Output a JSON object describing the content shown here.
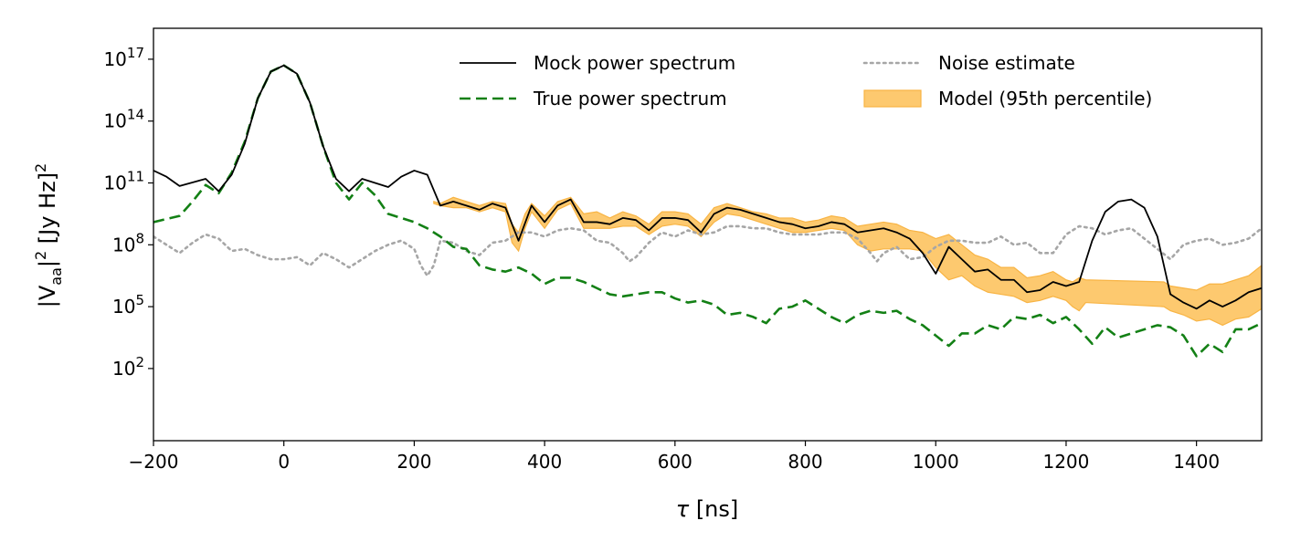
{
  "chart_data": {
    "type": "line",
    "title": "",
    "xlabel": {
      "symbol": "τ",
      "unit": "[ns]"
    },
    "ylabel": {
      "v": "|V",
      "sub": "aa",
      "bracket": "|",
      "sup1": "2",
      "unit": " [Jy Hz]",
      "sup2": "2"
    },
    "xlim": [
      -200,
      1500
    ],
    "ylim_log10": [
      -1.5,
      18.5
    ],
    "yscale": "log",
    "x_ticks": [
      {
        "value": -200,
        "label": "−200"
      },
      {
        "value": 0,
        "label": "0"
      },
      {
        "value": 200,
        "label": "200"
      },
      {
        "value": 400,
        "label": "400"
      },
      {
        "value": 600,
        "label": "600"
      },
      {
        "value": 800,
        "label": "800"
      },
      {
        "value": 1000,
        "label": "1000"
      },
      {
        "value": 1200,
        "label": "1200"
      },
      {
        "value": 1400,
        "label": "1400"
      }
    ],
    "y_ticks": [
      {
        "exp": 17,
        "base": "10",
        "sup": "17"
      },
      {
        "exp": 14,
        "base": "10",
        "sup": "14"
      },
      {
        "exp": 11,
        "base": "10",
        "sup": "11"
      },
      {
        "exp": 8,
        "base": "10",
        "sup": "8"
      },
      {
        "exp": 5,
        "base": "10",
        "sup": "5"
      },
      {
        "exp": 2,
        "base": "10",
        "sup": "2"
      }
    ],
    "legend_position": "top-right",
    "legend": [
      {
        "key": "mock",
        "label": "Mock power spectrum",
        "style": "line-solid"
      },
      {
        "key": "noise",
        "label": "Noise estimate",
        "style": "line-dotted"
      },
      {
        "key": "true",
        "label": "True power spectrum",
        "style": "line-dashed"
      },
      {
        "key": "model",
        "label": "Model (95th percentile)",
        "style": "band"
      }
    ],
    "colors": {
      "mock": "#000000",
      "true": "#138015",
      "noise": "#a6a6a6",
      "model_fill": "#fdc96f",
      "model_edge": "#f8b444"
    },
    "series": [
      {
        "name": "Mock power spectrum",
        "key": "mock",
        "x": [
          -200,
          -180,
          -160,
          -120,
          -100,
          -80,
          -60,
          -40,
          -20,
          0,
          20,
          40,
          60,
          80,
          100,
          120,
          140,
          160,
          180,
          200,
          220,
          240,
          260,
          280,
          300,
          320,
          340,
          360,
          380,
          400,
          420,
          440,
          460,
          480,
          500,
          520,
          540,
          560,
          580,
          600,
          620,
          640,
          660,
          680,
          700,
          720,
          740,
          760,
          780,
          800,
          820,
          840,
          860,
          880,
          900,
          920,
          940,
          960,
          980,
          1000,
          1020,
          1040,
          1060,
          1080,
          1100,
          1120,
          1140,
          1160,
          1180,
          1200,
          1220,
          1240,
          1260,
          1280,
          1300,
          1320,
          1340,
          1360,
          1380,
          1400,
          1420,
          1440,
          1460,
          1480,
          1500
        ],
        "log10_y": [
          11.6,
          11.3,
          10.85,
          11.2,
          10.6,
          11.4,
          12.9,
          15.1,
          16.4,
          16.7,
          16.3,
          14.9,
          12.8,
          11.2,
          10.6,
          11.2,
          11.0,
          10.8,
          11.3,
          11.6,
          11.4,
          9.9,
          10.1,
          9.9,
          9.7,
          10.0,
          9.8,
          8.2,
          9.9,
          9.1,
          9.9,
          10.2,
          9.1,
          9.1,
          9.0,
          9.3,
          9.2,
          8.7,
          9.3,
          9.3,
          9.2,
          8.6,
          9.5,
          9.8,
          9.7,
          9.5,
          9.3,
          9.1,
          9.0,
          8.8,
          8.9,
          9.1,
          9.0,
          8.6,
          8.7,
          8.8,
          8.6,
          8.3,
          7.6,
          6.6,
          7.9,
          7.3,
          6.7,
          6.8,
          6.3,
          6.3,
          5.7,
          5.8,
          6.2,
          6.0,
          6.2,
          8.2,
          9.6,
          10.1,
          10.2,
          9.8,
          8.4,
          5.6,
          5.2,
          4.9,
          5.3,
          5.0,
          5.3,
          5.7,
          5.9
        ],
        "dash": "none"
      },
      {
        "name": "True power spectrum",
        "key": "true",
        "x": [
          -200,
          -160,
          -140,
          -120,
          -100,
          -80,
          -60,
          -40,
          -20,
          0,
          20,
          40,
          60,
          80,
          100,
          120,
          140,
          160,
          180,
          200,
          220,
          240,
          260,
          280,
          300,
          320,
          340,
          360,
          380,
          400,
          420,
          440,
          460,
          480,
          500,
          520,
          540,
          560,
          580,
          600,
          620,
          640,
          660,
          680,
          700,
          720,
          740,
          760,
          780,
          800,
          820,
          840,
          860,
          880,
          900,
          920,
          940,
          960,
          980,
          1000,
          1020,
          1040,
          1060,
          1080,
          1100,
          1120,
          1140,
          1160,
          1180,
          1200,
          1220,
          1240,
          1260,
          1280,
          1300,
          1320,
          1340,
          1360,
          1380,
          1400,
          1420,
          1440,
          1460,
          1480,
          1500
        ],
        "log10_y": [
          9.1,
          9.4,
          10.1,
          10.9,
          10.5,
          11.5,
          13.0,
          15.1,
          16.4,
          16.7,
          16.3,
          14.9,
          12.8,
          11.0,
          10.2,
          11.0,
          10.4,
          9.5,
          9.3,
          9.1,
          8.8,
          8.4,
          7.9,
          7.8,
          7.0,
          6.8,
          6.7,
          6.9,
          6.6,
          6.1,
          6.4,
          6.4,
          6.2,
          5.9,
          5.6,
          5.5,
          5.6,
          5.7,
          5.7,
          5.4,
          5.2,
          5.3,
          5.1,
          4.6,
          4.7,
          4.5,
          4.2,
          4.9,
          5.0,
          5.3,
          4.9,
          4.5,
          4.2,
          4.6,
          4.8,
          4.7,
          4.8,
          4.4,
          4.1,
          3.6,
          3.1,
          3.7,
          3.7,
          4.1,
          3.9,
          4.5,
          4.4,
          4.6,
          4.2,
          4.5,
          3.9,
          3.2,
          4.0,
          3.5,
          3.7,
          3.9,
          4.1,
          4.0,
          3.6,
          2.6,
          3.2,
          2.8,
          3.9,
          3.9,
          4.2
        ],
        "dash": "dashed"
      },
      {
        "name": "Noise estimate",
        "key": "noise",
        "x": [
          -200,
          -180,
          -160,
          -140,
          -120,
          -100,
          -80,
          -60,
          -40,
          -20,
          0,
          20,
          40,
          60,
          80,
          100,
          120,
          140,
          160,
          180,
          200,
          210,
          220,
          230,
          240,
          260,
          280,
          300,
          320,
          340,
          360,
          380,
          400,
          420,
          440,
          460,
          480,
          500,
          520,
          530,
          540,
          560,
          580,
          600,
          620,
          640,
          660,
          680,
          700,
          720,
          740,
          760,
          780,
          800,
          820,
          840,
          860,
          880,
          900,
          910,
          920,
          940,
          960,
          980,
          1000,
          1020,
          1040,
          1060,
          1080,
          1100,
          1120,
          1140,
          1160,
          1180,
          1200,
          1220,
          1240,
          1260,
          1280,
          1300,
          1320,
          1340,
          1360,
          1380,
          1400,
          1420,
          1440,
          1460,
          1480,
          1500
        ],
        "log10_y": [
          8.4,
          8.0,
          7.6,
          8.1,
          8.5,
          8.3,
          7.7,
          7.8,
          7.5,
          7.3,
          7.3,
          7.4,
          7.0,
          7.6,
          7.3,
          6.9,
          7.3,
          7.7,
          8.0,
          8.2,
          7.8,
          7.0,
          6.5,
          7.0,
          8.2,
          8.1,
          7.7,
          7.5,
          8.1,
          8.2,
          8.6,
          8.6,
          8.4,
          8.7,
          8.8,
          8.7,
          8.2,
          8.1,
          7.6,
          7.2,
          7.4,
          8.1,
          8.6,
          8.4,
          8.7,
          8.5,
          8.6,
          8.9,
          8.9,
          8.8,
          8.8,
          8.6,
          8.5,
          8.5,
          8.5,
          8.6,
          8.6,
          8.3,
          7.6,
          7.2,
          7.6,
          7.9,
          7.3,
          7.4,
          7.9,
          8.2,
          8.2,
          8.1,
          8.1,
          8.4,
          8.0,
          8.1,
          7.6,
          7.6,
          8.5,
          8.9,
          8.8,
          8.5,
          8.7,
          8.8,
          8.3,
          7.8,
          7.3,
          8.0,
          8.2,
          8.3,
          8.0,
          8.1,
          8.3,
          8.8
        ],
        "dash": "dotted"
      },
      {
        "name": "Model (95th percentile)",
        "key": "model",
        "x": [
          230,
          240,
          260,
          280,
          300,
          320,
          340,
          350,
          360,
          370,
          380,
          400,
          420,
          440,
          460,
          480,
          500,
          520,
          540,
          560,
          580,
          600,
          620,
          640,
          660,
          680,
          700,
          720,
          740,
          760,
          780,
          800,
          820,
          840,
          860,
          880,
          900,
          920,
          940,
          960,
          980,
          1000,
          1020,
          1040,
          1060,
          1080,
          1100,
          1120,
          1140,
          1160,
          1180,
          1200,
          1210,
          1220,
          1230,
          1350,
          1360,
          1380,
          1400,
          1420,
          1440,
          1460,
          1480,
          1500
        ],
        "log10_y_upper": [
          10.1,
          10.0,
          10.3,
          10.1,
          9.9,
          10.1,
          10.0,
          9.0,
          8.6,
          9.5,
          10.0,
          9.4,
          10.1,
          10.3,
          9.5,
          9.6,
          9.3,
          9.6,
          9.4,
          9.0,
          9.6,
          9.6,
          9.5,
          9.0,
          9.8,
          10.0,
          9.8,
          9.6,
          9.5,
          9.3,
          9.3,
          9.1,
          9.2,
          9.4,
          9.3,
          8.9,
          9.0,
          9.1,
          9.0,
          8.7,
          8.6,
          8.3,
          8.5,
          8.0,
          7.5,
          7.3,
          6.9,
          6.9,
          6.4,
          6.5,
          6.7,
          6.3,
          6.2,
          6.4,
          6.3,
          6.2,
          6.0,
          5.9,
          5.8,
          6.1,
          6.1,
          6.3,
          6.5,
          7.0
        ],
        "log10_y_lower": [
          10.0,
          9.9,
          9.8,
          9.8,
          9.6,
          9.8,
          9.6,
          8.1,
          7.7,
          8.8,
          9.6,
          8.8,
          9.7,
          10.0,
          8.8,
          8.8,
          8.8,
          8.9,
          8.9,
          8.5,
          8.9,
          9.0,
          8.9,
          8.4,
          9.1,
          9.5,
          9.4,
          9.2,
          9.0,
          8.8,
          8.6,
          8.6,
          8.7,
          8.8,
          8.7,
          8.0,
          7.7,
          7.8,
          7.8,
          7.8,
          7.7,
          6.9,
          6.3,
          6.5,
          6.0,
          5.7,
          5.6,
          5.5,
          5.2,
          5.3,
          5.5,
          5.3,
          5.0,
          4.8,
          5.2,
          5.0,
          4.8,
          4.6,
          4.3,
          4.4,
          4.1,
          4.4,
          4.5,
          4.9
        ]
      }
    ]
  }
}
